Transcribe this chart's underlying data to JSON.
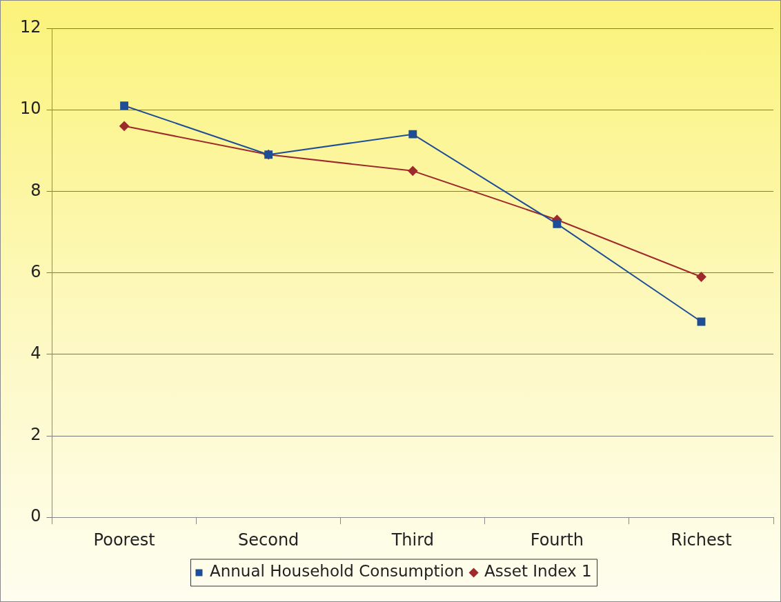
{
  "chart_data": {
    "type": "line",
    "categories": [
      "Poorest",
      "Second",
      "Third",
      "Fourth",
      "Richest"
    ],
    "series": [
      {
        "name": "Asset Index 1",
        "color": "#9e2a2b",
        "marker": "diamond",
        "values": [
          9.6,
          8.9,
          8.5,
          7.3,
          5.9
        ]
      },
      {
        "name": "Annual Household Consumption",
        "color": "#1f4e96",
        "marker": "square",
        "values": [
          10.1,
          8.9,
          9.4,
          7.2,
          4.8
        ]
      }
    ],
    "ylim": [
      0,
      12
    ],
    "yticks": [
      0,
      2,
      4,
      6,
      8,
      10,
      12
    ],
    "grid": "y",
    "legend": "bottom"
  }
}
